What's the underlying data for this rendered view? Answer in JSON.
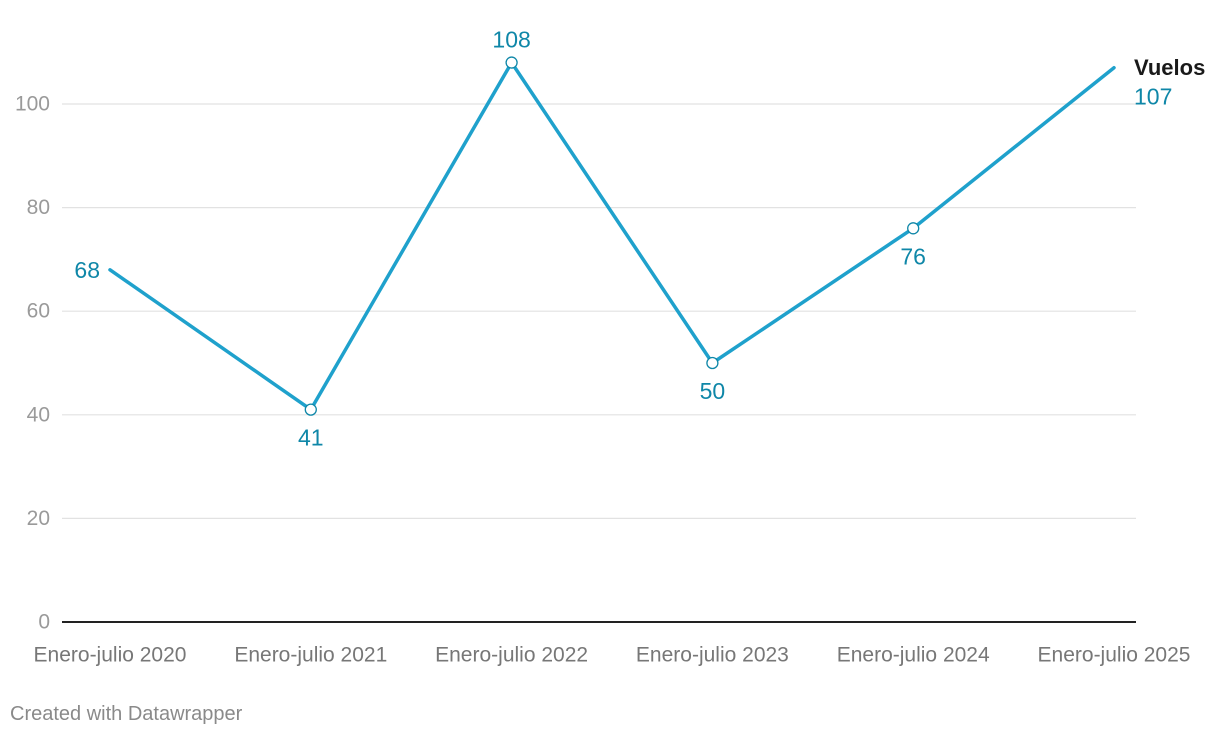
{
  "chart_data": {
    "type": "line",
    "categories": [
      "Enero-julio 2020",
      "Enero-julio 2021",
      "Enero-julio 2022",
      "Enero-julio 2023",
      "Enero-julio 2024",
      "Enero-julio 2025"
    ],
    "series": [
      {
        "name": "Vuelos",
        "values": [
          68,
          41,
          108,
          50,
          76,
          107
        ],
        "color": "#1fa1cc",
        "label_color": "#0f87a8",
        "markers": [
          false,
          true,
          true,
          true,
          true,
          false
        ],
        "label_positions": [
          "left",
          "below",
          "above",
          "below",
          "below",
          "end"
        ]
      }
    ],
    "ylim": [
      0,
      110
    ],
    "yticks": [
      0,
      20,
      40,
      60,
      80,
      100
    ],
    "ytick_labels": [
      "0",
      "20",
      "40",
      "60",
      "80",
      "100"
    ],
    "grid": true,
    "title": "",
    "xlabel": "",
    "ylabel": ""
  },
  "footer": {
    "credit": "Created with Datawrapper"
  },
  "colors": {
    "gridline": "#e2e2e2",
    "axis": "#222222",
    "tick_label": "#9a9a9a",
    "x_label": "#777777",
    "series_name": "#1a1a1a"
  }
}
